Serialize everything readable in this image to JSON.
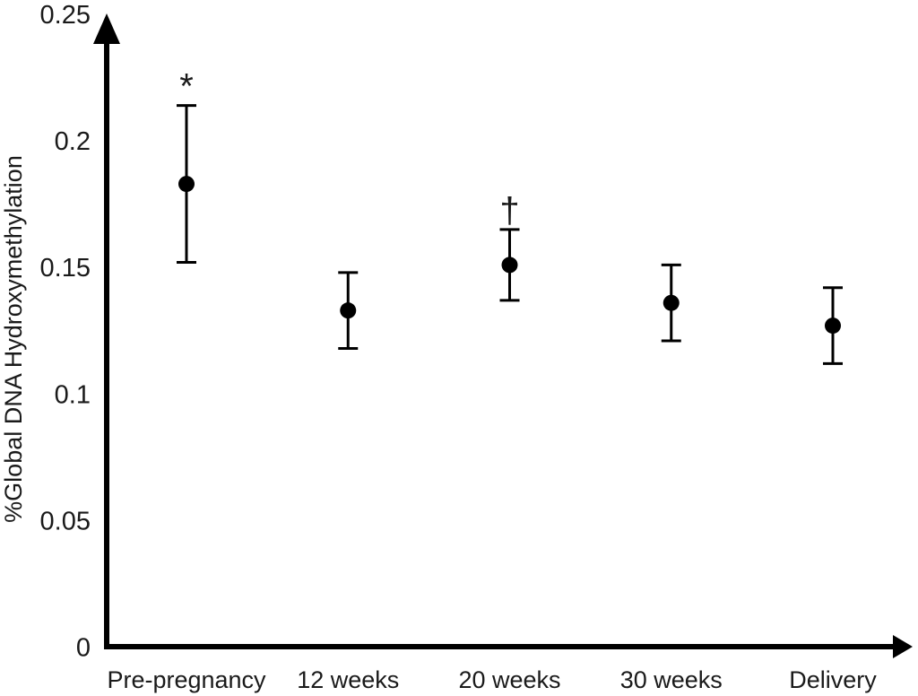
{
  "chart_data": {
    "type": "scatter",
    "title": "",
    "ylabel": "%Global DNA Hydroxymethylation",
    "xlabel": "",
    "ylim": [
      0,
      0.25
    ],
    "yticks": [
      {
        "value": 0,
        "label": "0"
      },
      {
        "value": 0.05,
        "label": "0.05"
      },
      {
        "value": 0.1,
        "label": "0.1"
      },
      {
        "value": 0.15,
        "label": "0.15"
      },
      {
        "value": 0.2,
        "label": "0.2"
      },
      {
        "value": 0.25,
        "label": "0.25"
      }
    ],
    "categories": [
      "Pre-pregnancy",
      "12 weeks",
      "20 weeks",
      "30 weeks",
      "Delivery"
    ],
    "series": [
      {
        "marker": "filled-circle",
        "color": "#000000",
        "values": [
          0.183,
          0.133,
          0.151,
          0.136,
          0.127
        ],
        "error_upper": [
          0.214,
          0.148,
          0.165,
          0.151,
          0.142
        ],
        "error_lower": [
          0.152,
          0.118,
          0.137,
          0.121,
          0.112
        ]
      }
    ],
    "annotations": [
      {
        "category_index": 0,
        "symbol": "*"
      },
      {
        "category_index": 2,
        "symbol": "†"
      }
    ],
    "grid": false,
    "legend": false,
    "axis_color": "#000000",
    "background_color": "#ffffff"
  }
}
